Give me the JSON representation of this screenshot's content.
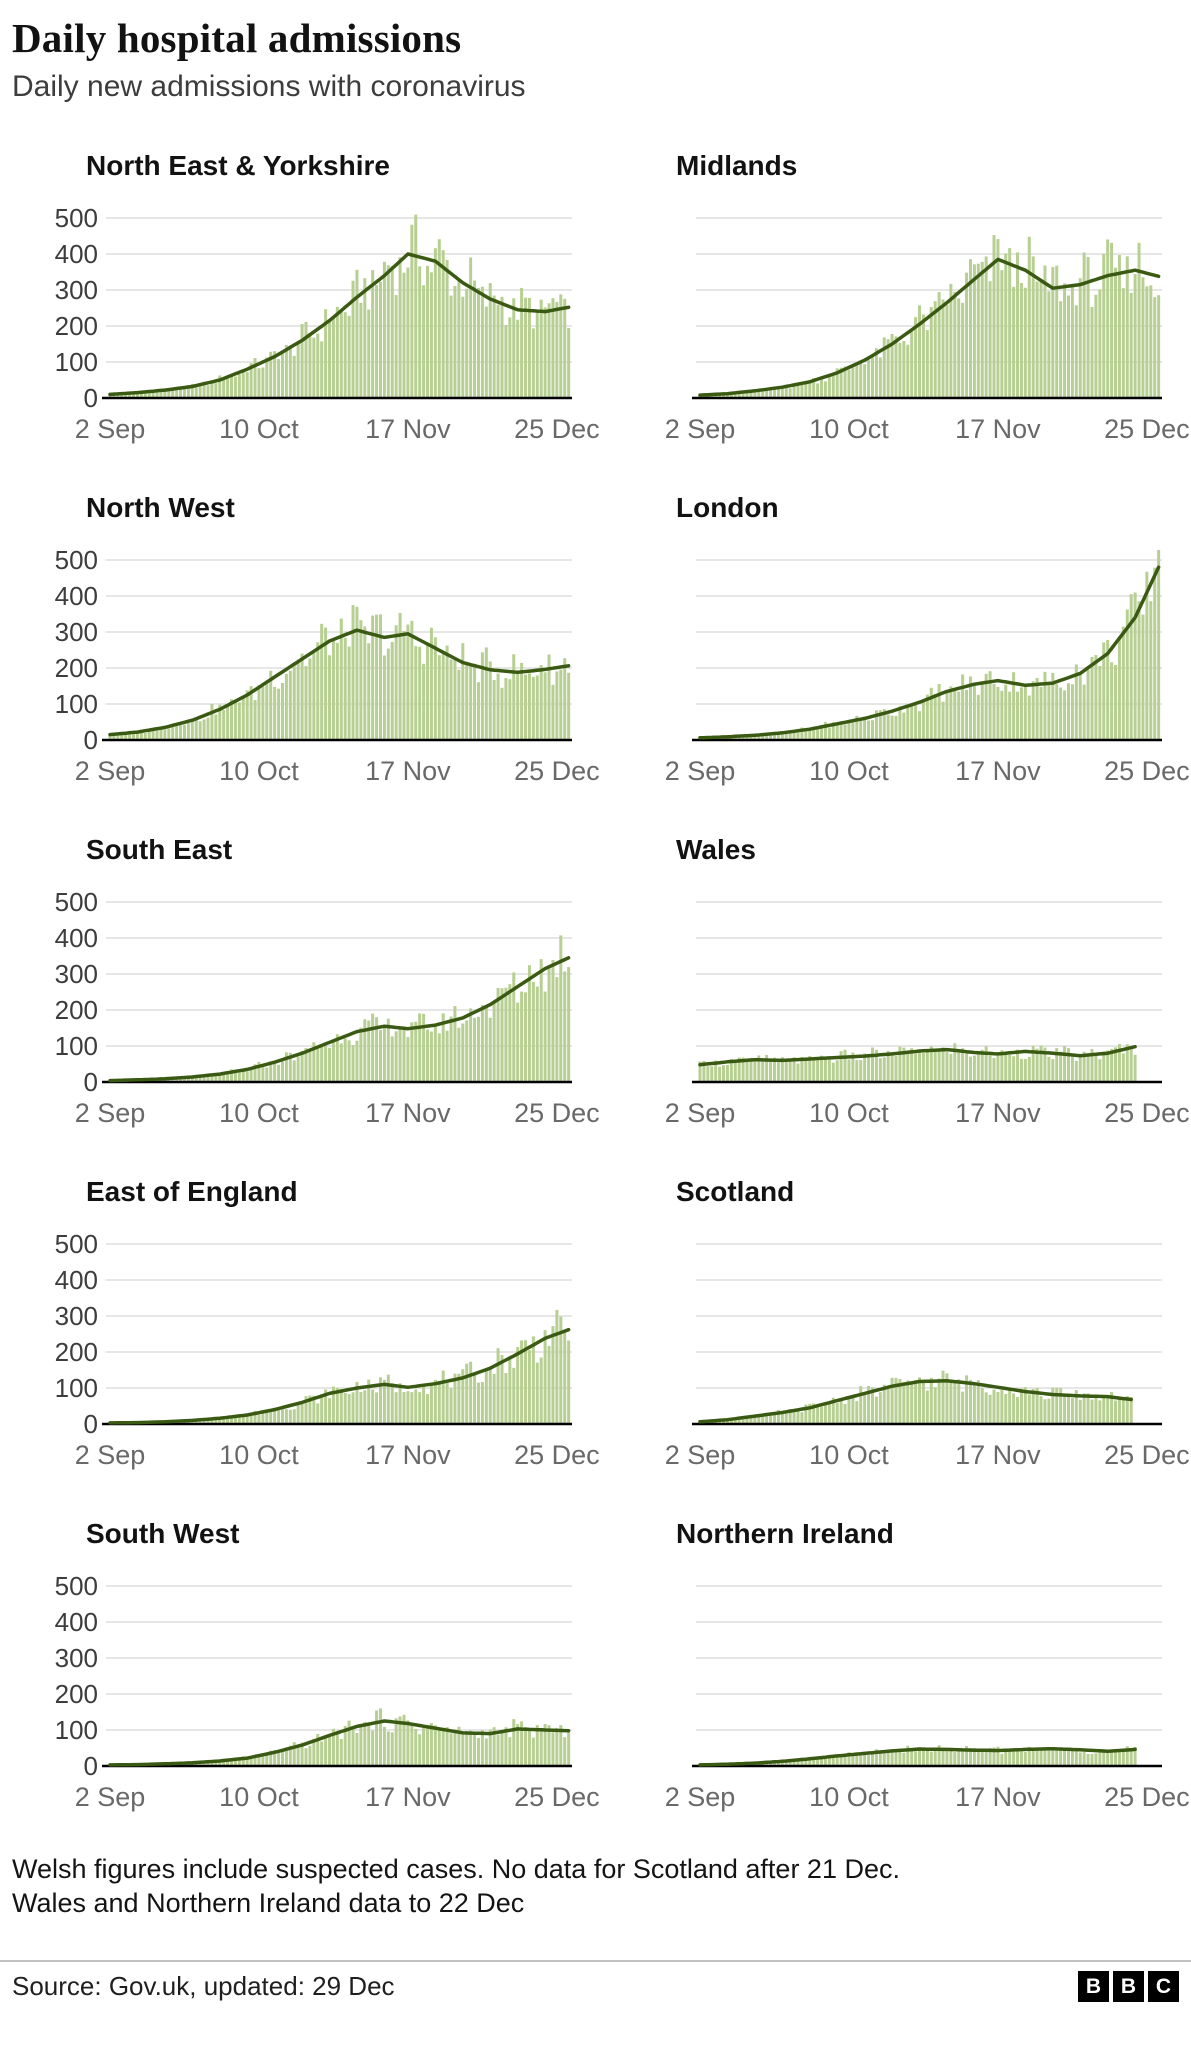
{
  "header": {
    "title": "Daily hospital admissions",
    "subtitle": "Daily new admissions with coronavirus"
  },
  "axes": {
    "x_tick_labels": [
      "2 Sep",
      "10 Oct",
      "17 Nov",
      "25 Dec"
    ],
    "x_tick_days": [
      0,
      38,
      76,
      114
    ],
    "y_ticks": [
      0,
      100,
      200,
      300,
      400,
      500
    ],
    "ylim": [
      0,
      500
    ]
  },
  "colors": {
    "bar": "#b7cf92",
    "trend_line": "#3a5a14",
    "grid": "#cccccc",
    "baseline": "#000000",
    "x_tick_text": "#696969",
    "y_tick_text": "#3d3d3d"
  },
  "chart_data": [
    {
      "title": "North East & Yorkshire",
      "type": "bar",
      "show_y_labels": true,
      "last_day": 117,
      "ylim": [
        0,
        500
      ],
      "trend_days": [
        0,
        7,
        14,
        21,
        28,
        35,
        42,
        49,
        56,
        63,
        70,
        76,
        83,
        90,
        97,
        104,
        111,
        117
      ],
      "trend_values": [
        10,
        15,
        22,
        32,
        50,
        80,
        115,
        160,
        215,
        280,
        340,
        400,
        380,
        320,
        275,
        245,
        240,
        252
      ]
    },
    {
      "title": "Midlands",
      "type": "bar",
      "show_y_labels": false,
      "last_day": 117,
      "ylim": [
        0,
        500
      ],
      "trend_days": [
        0,
        7,
        14,
        21,
        28,
        35,
        42,
        49,
        56,
        63,
        70,
        76,
        83,
        90,
        97,
        104,
        111,
        117
      ],
      "trend_values": [
        8,
        12,
        20,
        30,
        45,
        70,
        105,
        150,
        205,
        265,
        330,
        385,
        355,
        305,
        315,
        340,
        355,
        338
      ]
    },
    {
      "title": "North West",
      "type": "bar",
      "show_y_labels": true,
      "last_day": 117,
      "ylim": [
        0,
        500
      ],
      "trend_days": [
        0,
        7,
        14,
        21,
        28,
        35,
        42,
        49,
        56,
        63,
        70,
        76,
        83,
        90,
        97,
        104,
        111,
        117
      ],
      "trend_values": [
        15,
        22,
        35,
        55,
        85,
        125,
        175,
        225,
        275,
        305,
        285,
        295,
        255,
        215,
        195,
        188,
        196,
        206
      ]
    },
    {
      "title": "London",
      "type": "bar",
      "show_y_labels": false,
      "last_day": 117,
      "ylim": [
        0,
        500
      ],
      "trend_days": [
        0,
        7,
        14,
        21,
        28,
        35,
        42,
        49,
        56,
        63,
        70,
        76,
        83,
        90,
        97,
        104,
        111,
        117
      ],
      "trend_values": [
        6,
        9,
        13,
        20,
        30,
        45,
        60,
        80,
        105,
        135,
        155,
        165,
        152,
        158,
        185,
        240,
        340,
        480
      ]
    },
    {
      "title": "South East",
      "type": "bar",
      "show_y_labels": true,
      "last_day": 117,
      "ylim": [
        0,
        500
      ],
      "trend_days": [
        0,
        7,
        14,
        21,
        28,
        35,
        42,
        49,
        56,
        63,
        70,
        76,
        83,
        90,
        97,
        104,
        111,
        117
      ],
      "trend_values": [
        4,
        6,
        9,
        14,
        22,
        35,
        55,
        80,
        110,
        140,
        155,
        148,
        158,
        178,
        215,
        265,
        315,
        345
      ]
    },
    {
      "title": "Wales",
      "type": "bar",
      "show_y_labels": false,
      "last_day": 111,
      "ylim": [
        0,
        500
      ],
      "trend_days": [
        0,
        7,
        14,
        21,
        28,
        35,
        42,
        49,
        56,
        63,
        70,
        76,
        83,
        90,
        97,
        104,
        111
      ],
      "trend_values": [
        48,
        56,
        62,
        60,
        64,
        68,
        72,
        78,
        86,
        90,
        82,
        78,
        85,
        80,
        73,
        80,
        98
      ]
    },
    {
      "title": "East of England",
      "type": "bar",
      "show_y_labels": true,
      "last_day": 117,
      "ylim": [
        0,
        500
      ],
      "trend_days": [
        0,
        7,
        14,
        21,
        28,
        35,
        42,
        49,
        56,
        63,
        70,
        76,
        83,
        90,
        97,
        104,
        111,
        117
      ],
      "trend_values": [
        3,
        4,
        6,
        10,
        16,
        25,
        40,
        60,
        85,
        100,
        110,
        102,
        112,
        128,
        155,
        195,
        238,
        262
      ]
    },
    {
      "title": "Scotland",
      "type": "bar",
      "show_y_labels": false,
      "last_day": 110,
      "ylim": [
        0,
        500
      ],
      "trend_days": [
        0,
        7,
        14,
        21,
        28,
        35,
        42,
        49,
        56,
        63,
        70,
        76,
        83,
        90,
        97,
        104,
        110
      ],
      "trend_values": [
        6,
        12,
        22,
        32,
        45,
        65,
        85,
        105,
        118,
        120,
        112,
        102,
        90,
        82,
        78,
        76,
        68
      ]
    },
    {
      "title": "South West",
      "type": "bar",
      "show_y_labels": true,
      "last_day": 117,
      "ylim": [
        0,
        500
      ],
      "trend_days": [
        0,
        7,
        14,
        21,
        28,
        35,
        42,
        49,
        56,
        63,
        70,
        76,
        83,
        90,
        97,
        104,
        111,
        117
      ],
      "trend_values": [
        3,
        4,
        6,
        9,
        14,
        22,
        38,
        58,
        85,
        110,
        125,
        118,
        105,
        92,
        90,
        103,
        100,
        98
      ]
    },
    {
      "title": "Northern Ireland",
      "type": "bar",
      "show_y_labels": false,
      "last_day": 111,
      "ylim": [
        0,
        500
      ],
      "trend_days": [
        0,
        7,
        14,
        21,
        28,
        35,
        42,
        49,
        56,
        63,
        70,
        76,
        83,
        90,
        97,
        104,
        111
      ],
      "trend_values": [
        3,
        5,
        8,
        13,
        20,
        28,
        35,
        42,
        47,
        46,
        44,
        43,
        46,
        48,
        45,
        41,
        46
      ]
    }
  ],
  "footnotes": [
    "Welsh figures include suspected cases. No data for Scotland after 21 Dec.",
    "Wales and Northern Ireland data to 22 Dec"
  ],
  "source": {
    "text": "Source: Gov.uk, updated: 29 Dec",
    "logo_letters": [
      "B",
      "B",
      "C"
    ]
  }
}
